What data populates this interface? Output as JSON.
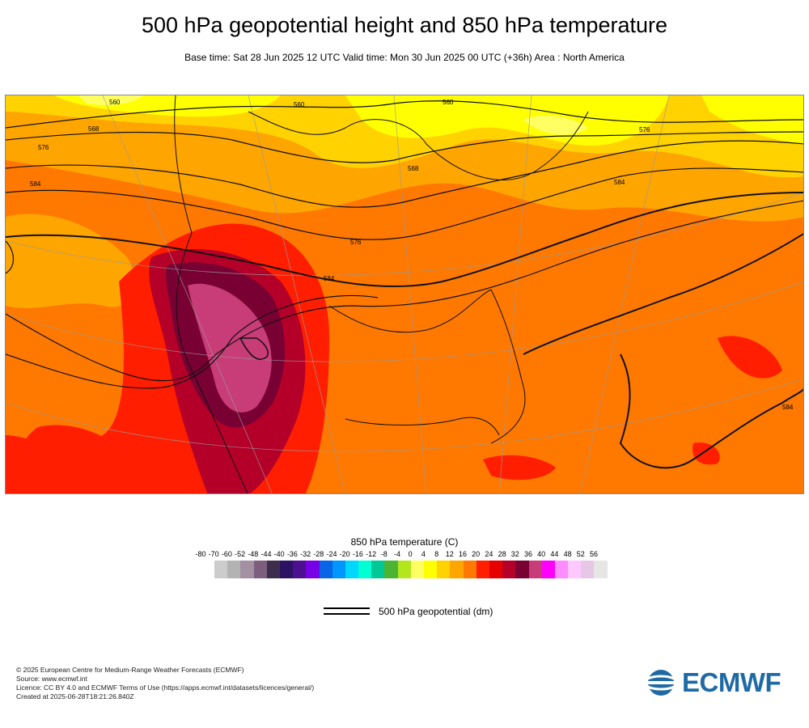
{
  "title": "500 hPa geopotential height and 850 hPa temperature",
  "subtitle": "Base time: Sat 28 Jun 2025 12 UTC Valid time: Mon 30 Jun 2025 00 UTC (+36h) Area : North America",
  "legend": {
    "title": "850 hPa temperature (C)",
    "ticks": [
      "-80",
      "-70",
      "-60",
      "-52",
      "-48",
      "-44",
      "-40",
      "-36",
      "-32",
      "-28",
      "-24",
      "-20",
      "-16",
      "-12",
      "-8",
      "-4",
      "0",
      "4",
      "8",
      "12",
      "16",
      "20",
      "24",
      "28",
      "32",
      "36",
      "40",
      "44",
      "48",
      "52",
      "56"
    ],
    "colors": [
      "#e6e6e6",
      "#cccccc",
      "#b3b3b3",
      "#a390a3",
      "#7d5f7d",
      "#3d2d4d",
      "#2d1264",
      "#4b0f8f",
      "#7800e6",
      "#0a64e6",
      "#0096ff",
      "#00d7ff",
      "#00ffd2",
      "#00c896",
      "#4bb432",
      "#b4e61e",
      "#ffff64",
      "#ffff00",
      "#ffd200",
      "#ffa500",
      "#ff7800",
      "#ff1e00",
      "#e60000",
      "#b40028",
      "#780032",
      "#c83c78",
      "#ff00ff",
      "#ff8cff",
      "#ffc8ff",
      "#e6c8e6",
      "#e6e6e6"
    ],
    "line_label": "500 hPa geopotential (dm)"
  },
  "contour_labels": [
    "560",
    "560",
    "560",
    "568",
    "576",
    "576",
    "584",
    "584",
    "576",
    "584",
    "568",
    "584"
  ],
  "footer": {
    "copyright": "© 2025 European Centre for Medium-Range Weather Forecasts (ECMWF)",
    "source": "Source: www.ecmwf.int",
    "licence": "Licence: CC BY 4.0 and ECMWF Terms of Use (https://apps.ecmwf.int/datasets/licences/general/)",
    "created": "Created at 2025-06-28T18:21:26.840Z"
  },
  "logo": {
    "text": "ECMWF",
    "color": "#1f6aa5"
  }
}
